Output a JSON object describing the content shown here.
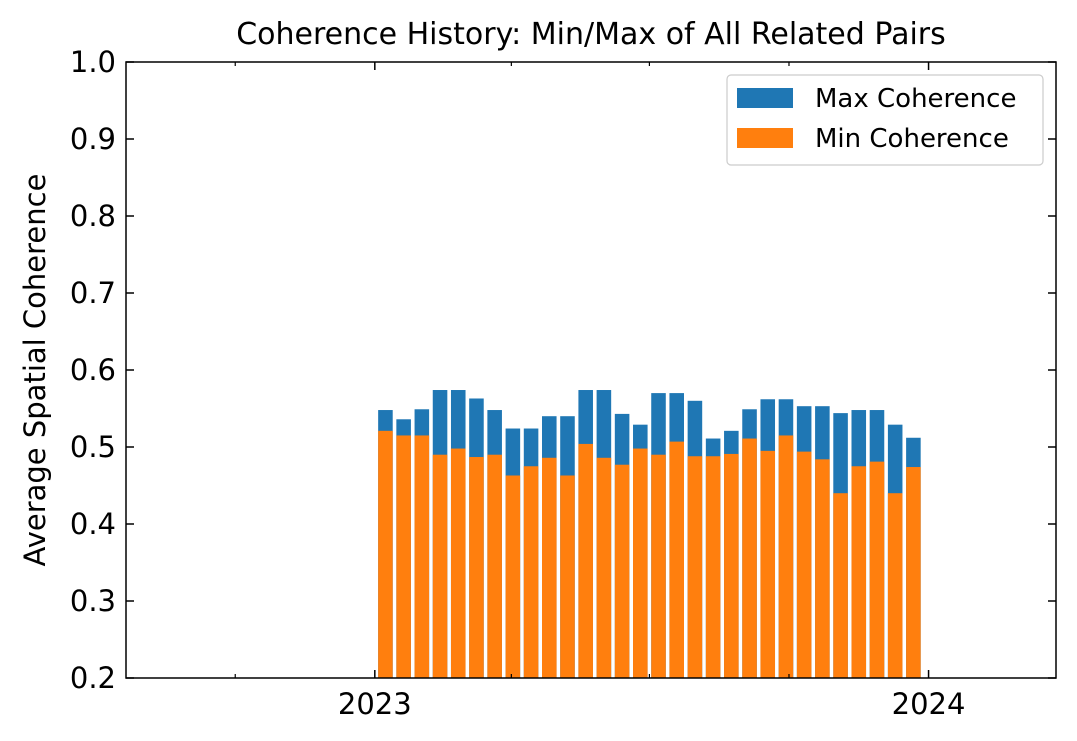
{
  "chart_data": {
    "type": "bar",
    "title": "Coherence History: Min/Max of All Related Pairs",
    "xlabel": "",
    "ylabel": "Average Spatial Coherence",
    "ylim": [
      0.2,
      1.0
    ],
    "yticks": [
      "0.2",
      "0.3",
      "0.4",
      "0.5",
      "0.6",
      "0.7",
      "0.8",
      "0.9",
      "1.0"
    ],
    "xlim": [
      "2022-07-21",
      "2024-03-25"
    ],
    "xticks": [
      {
        "date": "2023-01-01",
        "label": "2023"
      },
      {
        "date": "2024-01-01",
        "label": "2024"
      }
    ],
    "x_minor_ticks": [
      "2022-04-01",
      "2022-07-01",
      "2022-10-01",
      "2023-04-01",
      "2023-07-01",
      "2023-10-01",
      "2024-04-01"
    ],
    "legend_position": "top-right",
    "series": [
      {
        "name": "Max Coherence",
        "color": "#1f77b4",
        "values": [
          0.548,
          0.536,
          0.549,
          0.574,
          0.574,
          0.563,
          0.548,
          0.524,
          0.524,
          0.54,
          0.54,
          0.574,
          0.574,
          0.543,
          0.529,
          0.57,
          0.57,
          0.56,
          0.511,
          0.521,
          0.549,
          0.562,
          0.562,
          0.553,
          0.553,
          0.544,
          0.548,
          0.548,
          0.529,
          0.512
        ]
      },
      {
        "name": "Min Coherence",
        "color": "#ff7f0e",
        "values": [
          0.521,
          0.515,
          0.515,
          0.49,
          0.498,
          0.487,
          0.49,
          0.463,
          0.475,
          0.486,
          0.463,
          0.504,
          0.486,
          0.477,
          0.498,
          0.49,
          0.507,
          0.488,
          0.488,
          0.491,
          0.511,
          0.495,
          0.515,
          0.494,
          0.484,
          0.44,
          0.475,
          0.481,
          0.44,
          0.474
        ]
      }
    ],
    "dates": [
      "2023-01-08",
      "2023-01-20",
      "2023-02-01",
      "2023-02-13",
      "2023-02-25",
      "2023-03-09",
      "2023-03-21",
      "2023-04-02",
      "2023-04-14",
      "2023-04-26",
      "2023-05-08",
      "2023-05-20",
      "2023-06-01",
      "2023-06-13",
      "2023-06-25",
      "2023-07-07",
      "2023-07-19",
      "2023-07-31",
      "2023-08-12",
      "2023-08-24",
      "2023-09-05",
      "2023-09-17",
      "2023-09-29",
      "2023-10-11",
      "2023-10-23",
      "2023-11-04",
      "2023-11-16",
      "2023-11-28",
      "2023-12-10",
      "2023-12-22"
    ]
  }
}
